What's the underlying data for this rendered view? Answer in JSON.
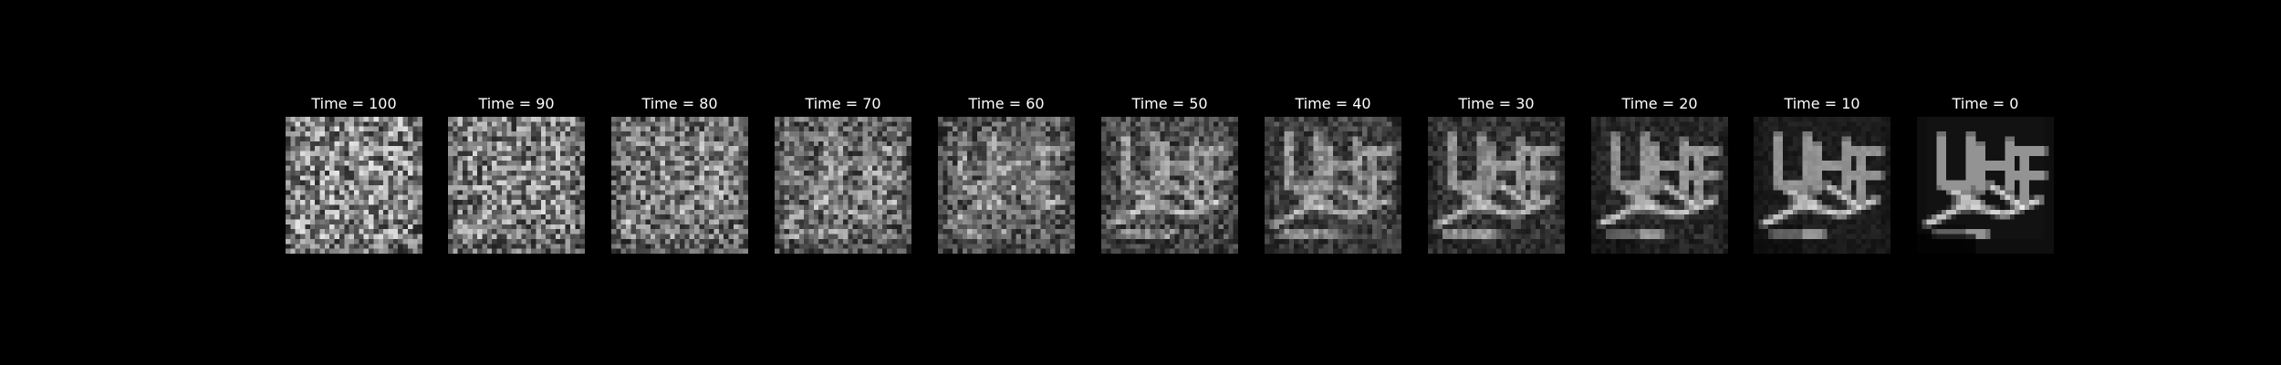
{
  "figure": {
    "background": "#000000",
    "text_color": "#ffffff",
    "panels": [
      {
        "title": "Time = 100",
        "time": 100
      },
      {
        "title": "Time = 90",
        "time": 90
      },
      {
        "title": "Time = 80",
        "time": 80
      },
      {
        "title": "Time = 70",
        "time": 70
      },
      {
        "title": "Time = 60",
        "time": 60
      },
      {
        "title": "Time = 50",
        "time": 50
      },
      {
        "title": "Time = 40",
        "time": 40
      },
      {
        "title": "Time = 30",
        "time": 30
      },
      {
        "title": "Time = 20",
        "time": 20
      },
      {
        "title": "Time = 10",
        "time": 10
      },
      {
        "title": "Time = 0",
        "time": 0
      }
    ]
  }
}
